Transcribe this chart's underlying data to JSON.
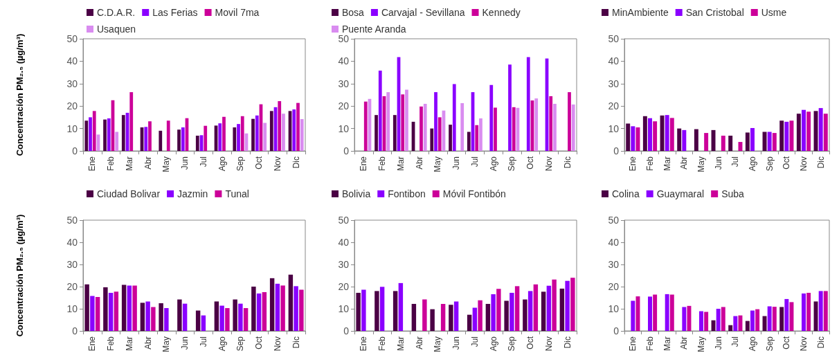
{
  "chart_data": [
    {
      "type": "bar",
      "ylabel": "Concentración PM₂.₅ (µg/m³)",
      "categories": [
        "Ene",
        "Feb",
        "Mar",
        "Abr",
        "May",
        "Jun",
        "Jul",
        "Ago",
        "Sep",
        "Oct",
        "Nov",
        "Dic"
      ],
      "ylim": [
        0,
        50
      ],
      "yticks": [
        0,
        10,
        20,
        30,
        40,
        50
      ],
      "grid": false,
      "legend": "top",
      "series": [
        {
          "name": "C.D.A.R.",
          "color": "#4b0045",
          "values": [
            13.5,
            14,
            16,
            10.5,
            9,
            9.5,
            6.8,
            11.3,
            10.5,
            14.3,
            17.8,
            17.8
          ]
        },
        {
          "name": "Las Ferias",
          "color": "#8a00ff",
          "values": [
            15,
            14.5,
            17,
            10.7,
            null,
            10.5,
            7,
            12.3,
            12,
            15.8,
            19.5,
            18.5
          ]
        },
        {
          "name": "Movil 7ma",
          "color": "#cc0099",
          "values": [
            17.8,
            22.6,
            26.2,
            13.2,
            13.5,
            14.6,
            11.2,
            15.2,
            15.5,
            20.8,
            22.2,
            21.4
          ]
        },
        {
          "name": "Usaquen",
          "color": "#d98cf0",
          "values": [
            7.3,
            8.5,
            null,
            null,
            null,
            null,
            null,
            null,
            7.8,
            12.5,
            16.6,
            14.2
          ]
        }
      ]
    },
    {
      "type": "bar",
      "categories": [
        "Ene",
        "Feb",
        "Mar",
        "Abr",
        "May",
        "Jun",
        "Jul",
        "Ago",
        "Sep",
        "Oct",
        "Nov",
        "Dic"
      ],
      "ylim": [
        0,
        50
      ],
      "yticks": [
        0,
        10,
        20,
        30,
        40,
        50
      ],
      "grid": false,
      "legend": "top",
      "series": [
        {
          "name": "Bosa",
          "color": "#4b0045",
          "values": [
            null,
            16,
            16,
            13,
            10,
            11.7,
            8.5,
            null,
            null,
            null,
            null,
            null
          ]
        },
        {
          "name": "Carvajal - Sevillana",
          "color": "#8a00ff",
          "values": [
            null,
            35.8,
            41.8,
            null,
            26.2,
            29.8,
            26.2,
            29.4,
            38.5,
            41.8,
            41.2,
            null
          ]
        },
        {
          "name": "Kennedy",
          "color": "#cc0099",
          "values": [
            22,
            24.4,
            25.2,
            19.8,
            15,
            null,
            11.5,
            19.3,
            19.5,
            22.5,
            24.4,
            26.2
          ]
        },
        {
          "name": "Puente Aranda",
          "color": "#d98cf0",
          "values": [
            23.2,
            26.2,
            27.3,
            21,
            18,
            21.3,
            14.5,
            null,
            19.2,
            23.4,
            21,
            20.7
          ]
        }
      ]
    },
    {
      "type": "bar",
      "categories": [
        "Ene",
        "Feb",
        "Mar",
        "Abr",
        "May",
        "Jun",
        "Jul",
        "Ago",
        "Sep",
        "Oct",
        "Nov",
        "Dic"
      ],
      "ylim": [
        0,
        50
      ],
      "yticks": [
        0,
        10,
        20,
        30,
        40,
        50
      ],
      "grid": false,
      "legend": "top",
      "series": [
        {
          "name": "MinAmbiente",
          "color": "#4b0045",
          "values": [
            12.2,
            15.5,
            15.8,
            10,
            9.7,
            9.3,
            6.8,
            8.2,
            8.5,
            13.5,
            16.6,
            17.8
          ]
        },
        {
          "name": "San Cristobal",
          "color": "#8a00ff",
          "values": [
            11,
            14.6,
            16,
            9.3,
            null,
            null,
            null,
            10.2,
            8.5,
            13,
            18.3,
            19.1
          ]
        },
        {
          "name": "Usme",
          "color": "#cc0099",
          "values": [
            10.5,
            13.2,
            14.7,
            null,
            8,
            6.8,
            4,
            null,
            8,
            13.5,
            17.5,
            16.6
          ]
        }
      ]
    },
    {
      "type": "bar",
      "ylabel": "Concentración PM₂.₅ (µg/m³)",
      "categories": [
        "Ene",
        "Feb",
        "Mar",
        "Abr",
        "May",
        "Jun",
        "Jul",
        "Ago",
        "Sep",
        "Oct",
        "Nov",
        "Dic"
      ],
      "ylim": [
        0,
        50
      ],
      "yticks": [
        0,
        10,
        20,
        30,
        40,
        50
      ],
      "grid": false,
      "legend": "top",
      "series": [
        {
          "name": "Ciudad Bolivar",
          "color": "#4b0045",
          "values": [
            21,
            19.7,
            20.8,
            12.7,
            12.5,
            14.2,
            9.2,
            13.3,
            14.2,
            20,
            23.8,
            25.4
          ]
        },
        {
          "name": "Jazmin",
          "color": "#8a00ff",
          "values": [
            15.8,
            17.2,
            20.5,
            13.3,
            10.3,
            12.3,
            7,
            11.4,
            12.3,
            16.9,
            21.3,
            20.2
          ]
        },
        {
          "name": "Tunal",
          "color": "#cc0099",
          "values": [
            15.3,
            17.7,
            20.5,
            10.8,
            null,
            null,
            null,
            10.3,
            10.3,
            17.5,
            20.5,
            18.6
          ]
        }
      ]
    },
    {
      "type": "bar",
      "categories": [
        "Ene",
        "Feb",
        "Mar",
        "Abr",
        "May",
        "Jun",
        "Jul",
        "Ago",
        "Sep",
        "Oct",
        "Nov",
        "Dic"
      ],
      "ylim": [
        0,
        50
      ],
      "yticks": [
        0,
        10,
        20,
        30,
        40,
        50
      ],
      "grid": false,
      "legend": "top",
      "series": [
        {
          "name": "Bolivia",
          "color": "#4b0045",
          "values": [
            17.2,
            18,
            18,
            12.2,
            9.8,
            11.8,
            7.3,
            12.2,
            13.6,
            14.2,
            17.7,
            19.1
          ]
        },
        {
          "name": "Fontibon",
          "color": "#8a00ff",
          "values": [
            18.6,
            19.9,
            21.6,
            null,
            null,
            13.3,
            10.5,
            16.6,
            17.2,
            18,
            20.4,
            22.6
          ]
        },
        {
          "name": "Móvil Fontibón",
          "color": "#cc0099",
          "values": [
            null,
            null,
            null,
            14.2,
            12.2,
            null,
            13.8,
            19,
            20.2,
            21,
            23.2,
            24
          ]
        }
      ]
    },
    {
      "type": "bar",
      "categories": [
        "Ene",
        "Feb",
        "Mar",
        "Abr",
        "May",
        "Jun",
        "Jul",
        "Ago",
        "Sep",
        "Oct",
        "Nov",
        "Dic"
      ],
      "ylim": [
        0,
        50
      ],
      "yticks": [
        0,
        10,
        20,
        30,
        40,
        50
      ],
      "grid": false,
      "legend": "top",
      "series": [
        {
          "name": "Colina",
          "color": "#4b0045",
          "values": [
            null,
            null,
            null,
            null,
            null,
            4.8,
            2.6,
            4.5,
            6.7,
            10.8,
            null,
            13.3
          ]
        },
        {
          "name": "Guaymaral",
          "color": "#8a00ff",
          "values": [
            13.6,
            15.5,
            16.6,
            10.8,
            8.9,
            10,
            6.7,
            9.2,
            11.1,
            14.4,
            16.9,
            18
          ]
        },
        {
          "name": "Suba",
          "color": "#cc0099",
          "values": [
            15.6,
            16.4,
            16.4,
            11.3,
            8.6,
            10.8,
            7,
            9.8,
            10.9,
            13,
            17.2,
            18
          ]
        }
      ]
    }
  ]
}
